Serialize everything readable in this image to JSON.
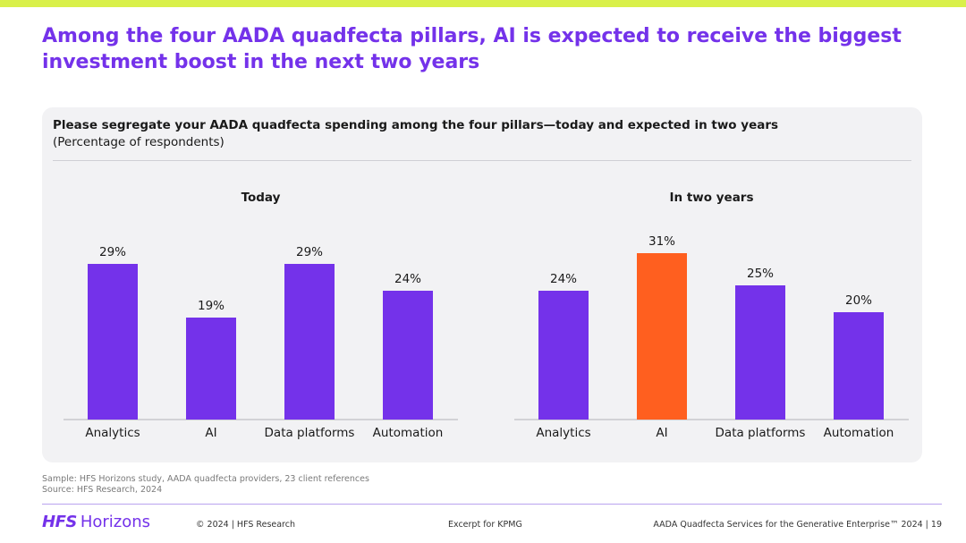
{
  "header": {
    "title": "Among the four AADA quadfecta pillars, AI is expected to receive the biggest investment boost in the next two years"
  },
  "panel": {
    "question": "Please segregate your AADA quadfecta spending among the four pillars—today and expected in two years",
    "subtitle": "(Percentage of respondents)"
  },
  "colors": {
    "accent": "#7432ea",
    "highlight": "#ff5f1f",
    "topbar": "#d9f04a"
  },
  "chart_data": [
    {
      "type": "bar",
      "title": "Today",
      "categories": [
        "Analytics",
        "AI",
        "Data platforms",
        "Automation"
      ],
      "values": [
        29,
        19,
        29,
        24
      ],
      "labels": [
        "29%",
        "19%",
        "29%",
        "24%"
      ],
      "unit": "%",
      "ylim": [
        0,
        32
      ],
      "highlight_index": -1
    },
    {
      "type": "bar",
      "title": "In two years",
      "categories": [
        "Analytics",
        "AI",
        "Data platforms",
        "Automation"
      ],
      "values": [
        24,
        31,
        25,
        20
      ],
      "labels": [
        "24%",
        "31%",
        "25%",
        "20%"
      ],
      "unit": "%",
      "ylim": [
        0,
        32
      ],
      "highlight_index": 1
    }
  ],
  "footer": {
    "sample": "Sample: HFS Horizons study, AADA quadfecta providers, 23 client references",
    "source": "Source: HFS Research, 2024",
    "logo_hfs": "HFS",
    "logo_horizons": "Horizons",
    "copyright": "© 2024 | HFS Research",
    "excerpt": "Excerpt for KPMG",
    "doc_title": "AADA Quadfecta Services for the Generative Enterprise™ 2024 | 19"
  }
}
